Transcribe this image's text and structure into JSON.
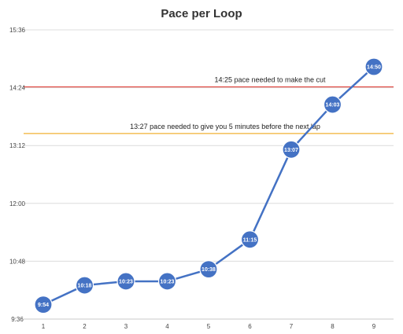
{
  "chart_data": {
    "type": "line",
    "title": "Pace per Loop",
    "xlabel": "",
    "ylabel": "",
    "x": [
      1,
      2,
      3,
      4,
      5,
      6,
      7,
      8,
      9
    ],
    "y_labels": [
      "9:54",
      "10:18",
      "10:23",
      "10:23",
      "10:38",
      "11:15",
      "13:07",
      "14:03",
      "14:50"
    ],
    "y_seconds": [
      594,
      618,
      623,
      623,
      638,
      675,
      787,
      843,
      890
    ],
    "y_ticks": [
      "9:36",
      "10:48",
      "12:00",
      "13:12",
      "14:24",
      "15:36"
    ],
    "y_tick_seconds": [
      576,
      648,
      720,
      792,
      864,
      936
    ],
    "ylim_seconds": [
      576,
      936
    ],
    "grid": "horizontal",
    "series_color": "#4472C4",
    "reference_lines": [
      {
        "label": "14:25 pace needed to make the cut",
        "value_seconds": 865,
        "color": "#E0403A"
      },
      {
        "label": "13:27 pace needed to give you 5 minutes before the next lap",
        "value_seconds": 807,
        "color": "#F2B233"
      }
    ]
  }
}
